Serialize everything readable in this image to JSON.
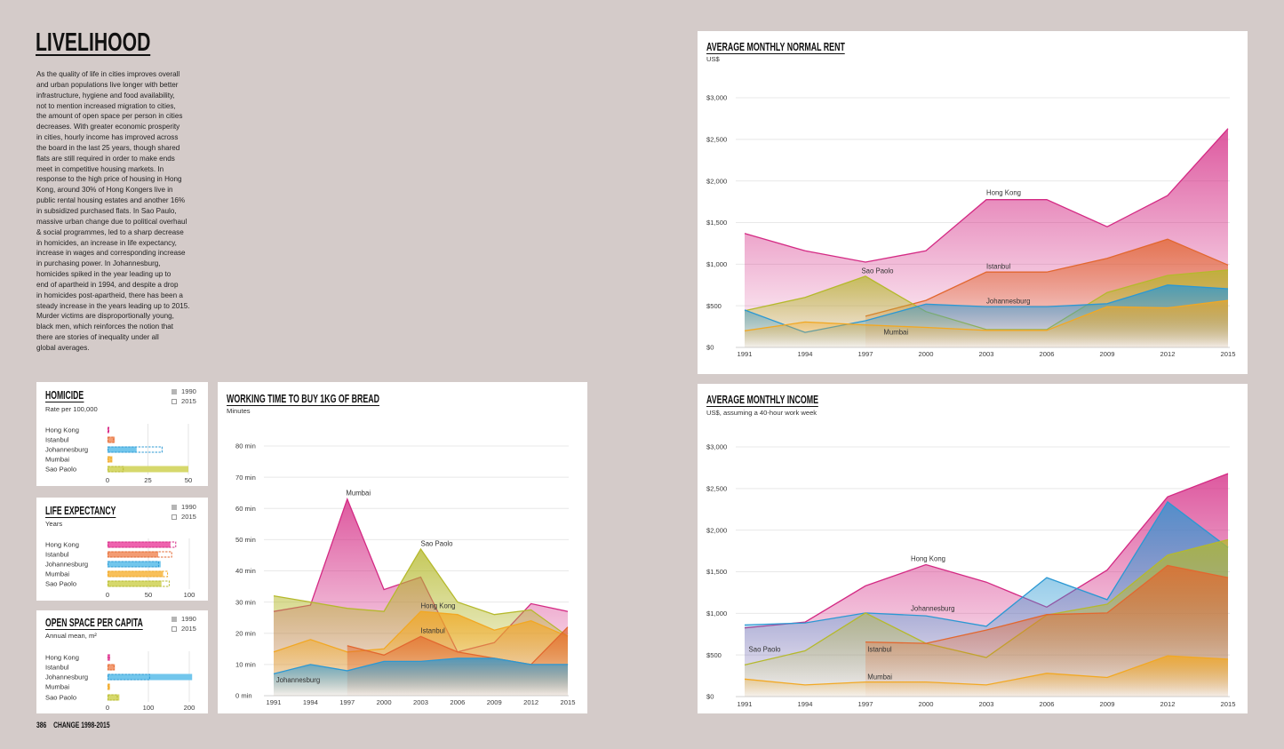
{
  "page": {
    "title": "LIVELIHOOD",
    "intro_lines": [
      "As the quality of life in cities improves overall",
      "and urban populations live longer with better",
      "infrastructure, hygiene and food availability,",
      "not to mention increased migration to cities,",
      "the amount of open space per person in cities",
      "decreases. With greater economic prosperity",
      "in cities, hourly income has improved across",
      "the board in the last 25 years, though shared",
      "flats are still required in order to make ends",
      "meet in competitive housing markets. In",
      "response to the high price of housing in Hong",
      "Kong, around 30% of Hong Kongers live in",
      "public rental housing estates and another 16%",
      "in subsidized purchased flats. In Sao Paulo,",
      "massive urban change due to political overhaul",
      "& social programmes, led to a sharp decrease",
      "in homicides, an increase in life expectancy,",
      "increase in wages and corresponding increase",
      "in purchasing power. In Johannesburg,",
      "homicides spiked in the year leading up to",
      "end of apartheid in 1994, and despite a drop",
      "in homicides post-apartheid, there has been a",
      "steady increase in the years leading up to 2015.",
      "Murder victims are disproportionally young,",
      "black men, which reinforces the notion that",
      "there are stories of inequality under all",
      "global averages."
    ],
    "footer_page_number": "386",
    "footer_section": "CHANGE 1998-2015"
  },
  "colors": {
    "background": "#d4cbc9",
    "panel": "#ffffff",
    "hong_kong": "#d42a84",
    "istanbul": "#e2672f",
    "johannesburg": "#2b98d3",
    "mumbai": "#f2a823",
    "sao_paolo": "#b5b92c"
  },
  "homicide": {
    "chart_data": {
      "type": "bar",
      "orientation": "horizontal",
      "title": "HOMICIDE",
      "subtitle": "Rate per 100,000",
      "categories": [
        "Hong Kong",
        "Istanbul",
        "Johannesburg",
        "Mumbai",
        "Sao Paolo"
      ],
      "series": [
        {
          "name": "1990",
          "style": "solid",
          "values": [
            1,
            4.5,
            18,
            3,
            50
          ]
        },
        {
          "name": "2015",
          "style": "dashed",
          "values": [
            1,
            4,
            34,
            2.5,
            10
          ]
        }
      ],
      "xlim": [
        0,
        50
      ],
      "xticks": [
        0,
        25,
        50
      ],
      "xtick_labels": [
        "0",
        "25",
        "50"
      ],
      "legend": "top-right",
      "category_colors": [
        {
          "fill": "#ee62ae",
          "stroke": "#d42a84"
        },
        {
          "fill": "#f39c73",
          "stroke": "#e2672f"
        },
        {
          "fill": "#72c6ec",
          "stroke": "#2b98d3"
        },
        {
          "fill": "#f8c05a",
          "stroke": "#eea521"
        },
        {
          "fill": "#d6d86c",
          "stroke": "#b5b92c"
        }
      ]
    }
  },
  "life_expectancy": {
    "chart_data": {
      "type": "bar",
      "orientation": "horizontal",
      "title": "LIFE EXPECTANCY",
      "subtitle": "Years",
      "categories": [
        "Hong Kong",
        "Istanbul",
        "Johannesburg",
        "Mumbai",
        "Sao Paolo"
      ],
      "series": [
        {
          "name": "1990",
          "style": "solid",
          "values": [
            77,
            62,
            65,
            68,
            66
          ]
        },
        {
          "name": "2015",
          "style": "dashed",
          "values": [
            84,
            79,
            63,
            74,
            76
          ]
        }
      ],
      "xlim": [
        0,
        100
      ],
      "xticks": [
        0,
        50,
        100
      ],
      "xtick_labels": [
        "0",
        "50",
        "100"
      ],
      "legend": "top-right",
      "category_colors": [
        {
          "fill": "#ee62ae",
          "stroke": "#d42a84"
        },
        {
          "fill": "#f39c73",
          "stroke": "#e2672f"
        },
        {
          "fill": "#72c6ec",
          "stroke": "#2b98d3"
        },
        {
          "fill": "#f8c05a",
          "stroke": "#eea521"
        },
        {
          "fill": "#d6d86c",
          "stroke": "#b5b92c"
        }
      ]
    }
  },
  "open_space": {
    "chart_data": {
      "type": "bar",
      "orientation": "horizontal",
      "title": "OPEN SPACE PER CAPITA",
      "subtitle": "Annual mean, m²",
      "categories": [
        "Hong Kong",
        "Istanbul",
        "Johannesburg",
        "Mumbai",
        "Sao Paolo"
      ],
      "series": [
        {
          "name": "1990",
          "style": "solid",
          "values": [
            6,
            18,
            207,
            6,
            29
          ]
        },
        {
          "name": "2015",
          "style": "dashed",
          "values": [
            6,
            17,
            104,
            5,
            25
          ]
        }
      ],
      "xlim": [
        0,
        200
      ],
      "xticks": [
        0,
        100,
        200
      ],
      "xtick_labels": [
        "0",
        "100",
        "200"
      ],
      "legend": "top-right",
      "category_colors": [
        {
          "fill": "#ee62ae",
          "stroke": "#d42a84"
        },
        {
          "fill": "#f39c73",
          "stroke": "#e2672f"
        },
        {
          "fill": "#72c6ec",
          "stroke": "#2b98d3"
        },
        {
          "fill": "#f8c05a",
          "stroke": "#eea521"
        },
        {
          "fill": "#d6d86c",
          "stroke": "#b5b92c"
        }
      ]
    }
  },
  "bread": {
    "chart_data": {
      "type": "area",
      "title": "WORKING TIME TO BUY 1KG OF BREAD",
      "subtitle": "Minutes",
      "x": [
        1991,
        1994,
        1997,
        2000,
        2003,
        2006,
        2009,
        2012,
        2015
      ],
      "xtick_labels": [
        "1991",
        "1994",
        "1997",
        "2000",
        "2003",
        "2006",
        "2009",
        "2012",
        "2015"
      ],
      "ylim": [
        0,
        80
      ],
      "yticks": [
        0,
        10,
        20,
        30,
        40,
        50,
        60,
        70,
        80
      ],
      "ytick_labels": [
        "0 min",
        "10 min",
        "20 min",
        "30 min",
        "40 min",
        "50 min",
        "60 min",
        "70 min",
        "80 min"
      ],
      "grid": true,
      "series": [
        {
          "name": "Mumbai",
          "color": "#d42a84",
          "values": [
            27,
            29,
            63,
            34,
            38,
            14,
            17,
            29.5,
            27
          ]
        },
        {
          "name": "Sao Paolo",
          "color": "#b5b92c",
          "values": [
            32,
            30,
            28,
            27,
            47,
            30,
            26,
            27.5,
            19
          ]
        },
        {
          "name": "Hong Kong",
          "color": "#f2a823",
          "values": [
            14,
            18,
            14,
            15,
            27,
            26,
            21,
            24,
            19
          ]
        },
        {
          "name": "Istanbul",
          "color": "#e2672f",
          "values": [
            null,
            null,
            16,
            13,
            19,
            14,
            12,
            10,
            22
          ]
        },
        {
          "name": "Johannesburg",
          "color": "#2b98d3",
          "values": [
            7,
            10,
            8,
            11,
            11,
            12,
            12,
            10,
            10
          ]
        }
      ],
      "annotations": [
        {
          "text": "Mumbai",
          "x": 1996.9,
          "y": 65
        },
        {
          "text": "Sao Paolo",
          "x": 2003.0,
          "y": 48.7
        },
        {
          "text": "Hong Kong",
          "x": 2003.0,
          "y": 28.8
        },
        {
          "text": "Istanbul",
          "x": 2003.0,
          "y": 20.8
        },
        {
          "text": "Johannesburg",
          "x": 1991.2,
          "y": 5.1
        }
      ]
    }
  },
  "rent": {
    "chart_data": {
      "type": "area",
      "title": "AVERAGE MONTHLY NORMAL RENT",
      "subtitle": "US$",
      "x": [
        1991,
        1994,
        1997,
        2000,
        2003,
        2006,
        2009,
        2012,
        2015
      ],
      "xtick_labels": [
        "1991",
        "1994",
        "1997",
        "2000",
        "2003",
        "2006",
        "2009",
        "2012",
        "2015"
      ],
      "ylim": [
        0,
        3000
      ],
      "yticks": [
        0,
        500,
        1000,
        1500,
        2000,
        2500,
        3000
      ],
      "ytick_labels": [
        "$0",
        "$500",
        "$1,000",
        "$1,500",
        "$2,000",
        "$2,500",
        "$3,000"
      ],
      "grid": true,
      "series": [
        {
          "name": "Hong Kong",
          "color": "#d42a84",
          "values": [
            1370,
            1160,
            1025,
            1160,
            1775,
            1775,
            1450,
            1825,
            2630
          ]
        },
        {
          "name": "Istanbul",
          "color": "#e2672f",
          "values": [
            null,
            null,
            375,
            565,
            905,
            905,
            1070,
            1300,
            990
          ]
        },
        {
          "name": "Sao Paolo",
          "color": "#b5b92c",
          "values": [
            440,
            600,
            855,
            430,
            215,
            215,
            660,
            865,
            930
          ]
        },
        {
          "name": "Johannesburg",
          "color": "#2b98d3",
          "values": [
            450,
            180,
            320,
            520,
            490,
            490,
            525,
            750,
            705
          ]
        },
        {
          "name": "Mumbai",
          "color": "#f2a823",
          "values": [
            200,
            305,
            270,
            240,
            205,
            205,
            490,
            475,
            565
          ]
        }
      ],
      "annotations": [
        {
          "text": "Hong Kong",
          "x": 2003.0,
          "y": 1860
        },
        {
          "text": "Sao Paolo",
          "x": 1996.8,
          "y": 920
        },
        {
          "text": "Istanbul",
          "x": 2003.0,
          "y": 972
        },
        {
          "text": "Johannesburg",
          "x": 2003.0,
          "y": 556
        },
        {
          "text": "Mumbai",
          "x": 1997.9,
          "y": 182
        }
      ]
    }
  },
  "income": {
    "chart_data": {
      "type": "area",
      "title": "AVERAGE MONTHLY INCOME",
      "subtitle": "US$, assuming a 40-hour work week",
      "x": [
        1991,
        1994,
        1997,
        2000,
        2003,
        2006,
        2009,
        2012,
        2015
      ],
      "xtick_labels": [
        "1991",
        "1994",
        "1997",
        "2000",
        "2003",
        "2006",
        "2009",
        "2012",
        "2015"
      ],
      "ylim": [
        0,
        3000
      ],
      "yticks": [
        0,
        500,
        1000,
        1500,
        2000,
        2500,
        3000
      ],
      "ytick_labels": [
        "$0",
        "$500",
        "$1,000",
        "$1,500",
        "$2,000",
        "$2,500",
        "$3,000"
      ],
      "grid": true,
      "series": [
        {
          "name": "Hong Kong",
          "color": "#d42a84",
          "values": [
            825,
            895,
            1330,
            1585,
            1375,
            1075,
            1520,
            2400,
            2680
          ]
        },
        {
          "name": "Johannesburg",
          "color": "#2b98d3",
          "values": [
            860,
            885,
            1005,
            970,
            845,
            1430,
            1165,
            2340,
            1790
          ]
        },
        {
          "name": "Sao Paolo",
          "color": "#b5b92c",
          "values": [
            380,
            550,
            1005,
            640,
            470,
            980,
            1110,
            1700,
            1885
          ]
        },
        {
          "name": "Istanbul",
          "color": "#e2672f",
          "values": [
            null,
            null,
            655,
            640,
            800,
            985,
            1005,
            1575,
            1430
          ]
        },
        {
          "name": "Mumbai",
          "color": "#f2a823",
          "values": [
            210,
            140,
            175,
            175,
            140,
            280,
            230,
            490,
            450
          ]
        }
      ],
      "annotations": [
        {
          "text": "Hong Kong",
          "x": 1999.25,
          "y": 1656
        },
        {
          "text": "Johannesburg",
          "x": 1999.25,
          "y": 1058
        },
        {
          "text": "Sao Paolo",
          "x": 1991.2,
          "y": 566
        },
        {
          "text": "Istanbul",
          "x": 1997.1,
          "y": 566
        },
        {
          "text": "Mumbai",
          "x": 1997.1,
          "y": 235
        }
      ]
    }
  }
}
